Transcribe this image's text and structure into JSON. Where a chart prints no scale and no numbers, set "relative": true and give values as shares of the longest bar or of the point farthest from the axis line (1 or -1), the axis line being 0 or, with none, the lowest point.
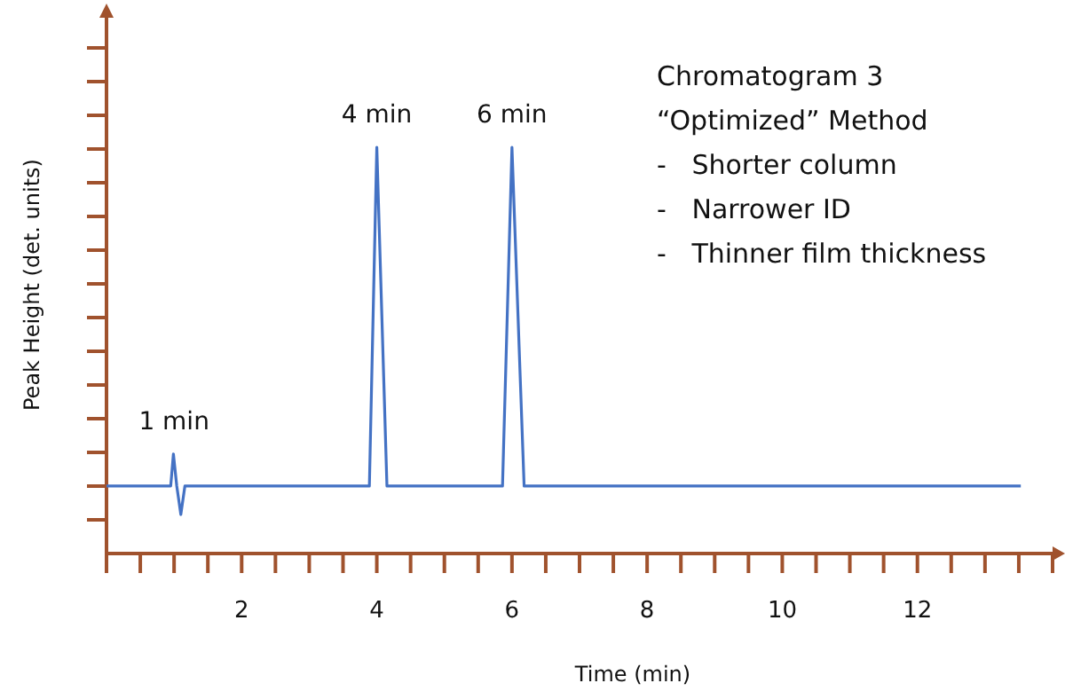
{
  "chart_data": {
    "type": "line",
    "title": "Chromatogram 3",
    "subtitle": "“Optimized” Method",
    "xlabel": "Time (min)",
    "ylabel": "Peak Height (det. units)",
    "relative": true,
    "xlim": [
      0,
      14
    ],
    "xticks": [
      {
        "value": 0.5,
        "label": null
      },
      {
        "value": 1,
        "label": null
      },
      {
        "value": 1.5,
        "label": null
      },
      2,
      {
        "value": 2.5,
        "label": null
      },
      {
        "value": 3,
        "label": null
      },
      {
        "value": 3.5,
        "label": null
      },
      4,
      {
        "value": 4.5,
        "label": null
      },
      {
        "value": 5,
        "label": null
      },
      {
        "value": 5.5,
        "label": null
      },
      6,
      {
        "value": 6.5,
        "label": null
      },
      {
        "value": 7,
        "label": null
      },
      {
        "value": 7.5,
        "label": null
      },
      8,
      {
        "value": 8.5,
        "label": null
      },
      {
        "value": 9,
        "label": null
      },
      {
        "value": 9.5,
        "label": null
      },
      10,
      {
        "value": 10.5,
        "label": null
      },
      {
        "value": 11,
        "label": null
      },
      {
        "value": 11.5,
        "label": null
      },
      12,
      {
        "value": 12.5,
        "label": null
      },
      {
        "value": 13,
        "label": null
      },
      {
        "value": 13.5,
        "label": null
      }
    ],
    "series": [
      {
        "color": "#4472c4",
        "x": [
          0,
          0.95,
          0.99,
          1.04,
          1.1,
          1.16,
          2,
          3,
          3.89,
          4.0,
          4.15,
          5,
          5.86,
          6.0,
          6.18,
          7,
          8,
          9,
          10,
          11,
          12,
          13,
          13.53
        ],
        "values": [
          0.166,
          0.166,
          0.245,
          0.166,
          0.096,
          0.166,
          0.166,
          0.166,
          0.166,
          1,
          0.166,
          0.166,
          0.166,
          1,
          0.166,
          0.166,
          0.166,
          0.166,
          0.166,
          0.166,
          0.166,
          0.166,
          0.166
        ]
      }
    ],
    "annotations": [
      {
        "text": "1 min",
        "x": 1,
        "y": 0.245
      },
      {
        "text": "4 min",
        "x": 4,
        "y": 1
      },
      {
        "text": "6 min",
        "x": 6,
        "y": 1
      },
      "-   Shorter column",
      "-   Narrower ID",
      "-   Thinner film thickness"
    ],
    "marker": "none",
    "line_style": "solid"
  }
}
